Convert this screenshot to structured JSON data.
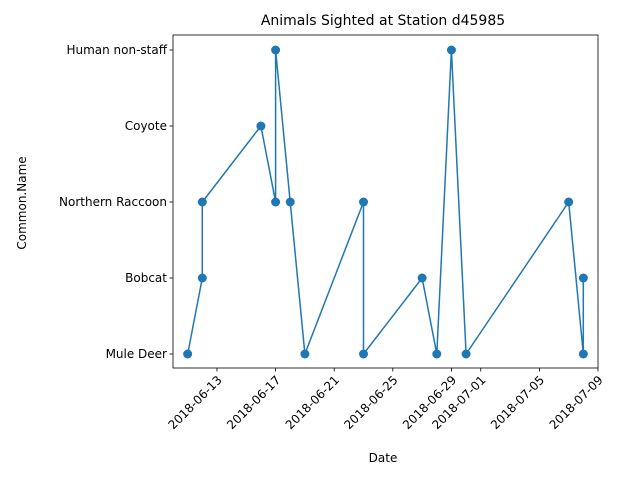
{
  "chart_data": {
    "type": "line",
    "title": "Animals Sighted at Station d45985",
    "xlabel": "Date",
    "ylabel": "Common.Name",
    "categories": [
      "Mule Deer",
      "Bobcat",
      "Northern Raccoon",
      "Coyote",
      "Human non-staff"
    ],
    "x_ticks": [
      "2018-06-13",
      "2018-06-17",
      "2018-06-21",
      "2018-06-25",
      "2018-06-29",
      "2018-07-01",
      "2018-07-05",
      "2018-07-09"
    ],
    "xlim": [
      "2018-06-10",
      "2018-07-09"
    ],
    "grid": false,
    "color": "#1f77b4",
    "series": [
      {
        "x": [
          "2018-06-11",
          "2018-06-12",
          "2018-06-12",
          "2018-06-16",
          "2018-06-17",
          "2018-06-17",
          "2018-06-18",
          "2018-06-19",
          "2018-06-23",
          "2018-06-23",
          "2018-06-27",
          "2018-06-28",
          "2018-06-29",
          "2018-06-30",
          "2018-07-07",
          "2018-07-08",
          "2018-07-08"
        ],
        "y": [
          "Mule Deer",
          "Bobcat",
          "Northern Raccoon",
          "Coyote",
          "Northern Raccoon",
          "Human non-staff",
          "Northern Raccoon",
          "Mule Deer",
          "Northern Raccoon",
          "Mule Deer",
          "Bobcat",
          "Mule Deer",
          "Human non-staff",
          "Mule Deer",
          "Northern Raccoon",
          "Mule Deer",
          "Bobcat"
        ]
      }
    ]
  }
}
